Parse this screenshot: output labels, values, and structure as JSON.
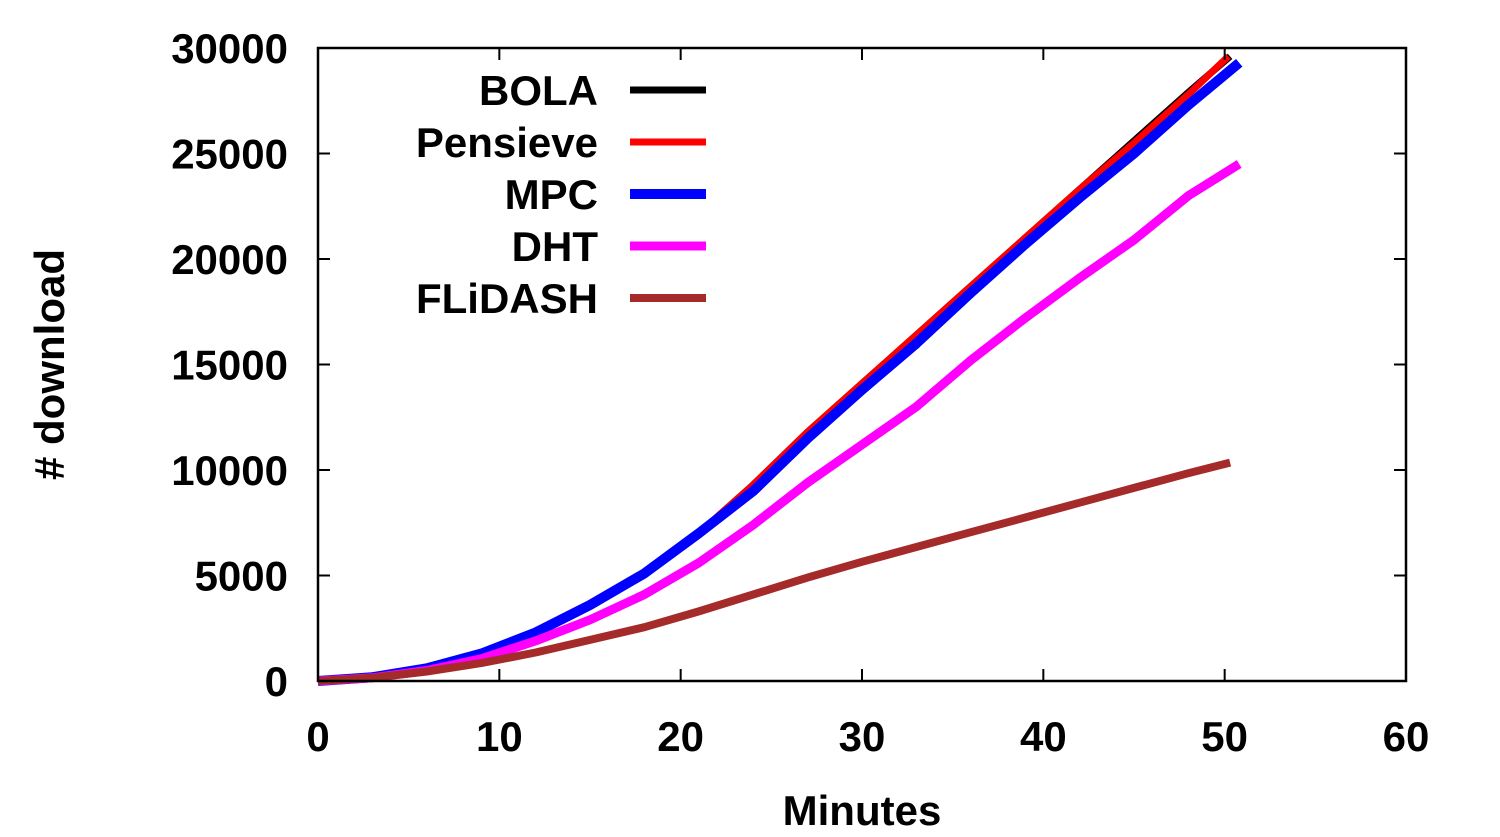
{
  "chart_data": {
    "type": "line",
    "xlabel": "Minutes",
    "ylabel": "# download",
    "xlim": [
      0,
      60
    ],
    "ylim": [
      0,
      30000
    ],
    "xticks": [
      "0",
      "10",
      "20",
      "30",
      "40",
      "50",
      "60"
    ],
    "yticks": [
      "0",
      "5000",
      "10000",
      "15000",
      "20000",
      "25000",
      "30000"
    ],
    "grid": false,
    "legend_position": "top-left",
    "series": [
      {
        "name": "BOLA",
        "color": "#000000",
        "x": [
          0,
          3,
          6,
          9,
          12,
          15,
          18,
          21,
          24,
          27,
          30,
          33,
          36,
          39,
          42,
          45,
          48,
          50.3
        ],
        "y": [
          0,
          180,
          600,
          1300,
          2300,
          3600,
          5100,
          7000,
          9300,
          11800,
          14100,
          16400,
          18700,
          21000,
          23300,
          25600,
          27900,
          29600
        ]
      },
      {
        "name": "Pensieve",
        "color": "#ff0000",
        "x": [
          0,
          3,
          6,
          9,
          12,
          15,
          18,
          21,
          24,
          27,
          30,
          33,
          36,
          39,
          42,
          45,
          48,
          50.2
        ],
        "y": [
          0,
          180,
          600,
          1300,
          2300,
          3600,
          5100,
          7000,
          9300,
          11800,
          14100,
          16400,
          18700,
          21000,
          23300,
          25500,
          27800,
          29600
        ]
      },
      {
        "name": "MPC",
        "color": "#0000ff",
        "x": [
          0,
          3,
          6,
          9,
          12,
          15,
          18,
          21,
          24,
          27,
          30,
          33,
          36,
          39,
          42,
          45,
          48,
          50.8
        ],
        "y": [
          0,
          180,
          600,
          1300,
          2300,
          3600,
          5100,
          7000,
          9000,
          11500,
          13800,
          16000,
          18400,
          20700,
          22900,
          25000,
          27300,
          29300
        ]
      },
      {
        "name": "DHT",
        "color": "#ff00ff",
        "x": [
          0,
          3,
          6,
          9,
          12,
          15,
          18,
          21,
          24,
          27,
          30,
          33,
          36,
          39,
          42,
          45,
          48,
          50.8
        ],
        "y": [
          0,
          150,
          500,
          1050,
          1900,
          2900,
          4100,
          5600,
          7400,
          9400,
          11200,
          13000,
          15200,
          17200,
          19100,
          20900,
          23000,
          24500
        ]
      },
      {
        "name": "FLiDASH",
        "color": "#a52a2a",
        "x": [
          0,
          3,
          6,
          9,
          12,
          15,
          18,
          21,
          24,
          27,
          30,
          33,
          36,
          39,
          42,
          45,
          48,
          50.3
        ],
        "y": [
          0,
          150,
          450,
          850,
          1350,
          1950,
          2550,
          3300,
          4100,
          4900,
          5650,
          6350,
          7050,
          7750,
          8450,
          9150,
          9850,
          10350
        ]
      }
    ]
  }
}
